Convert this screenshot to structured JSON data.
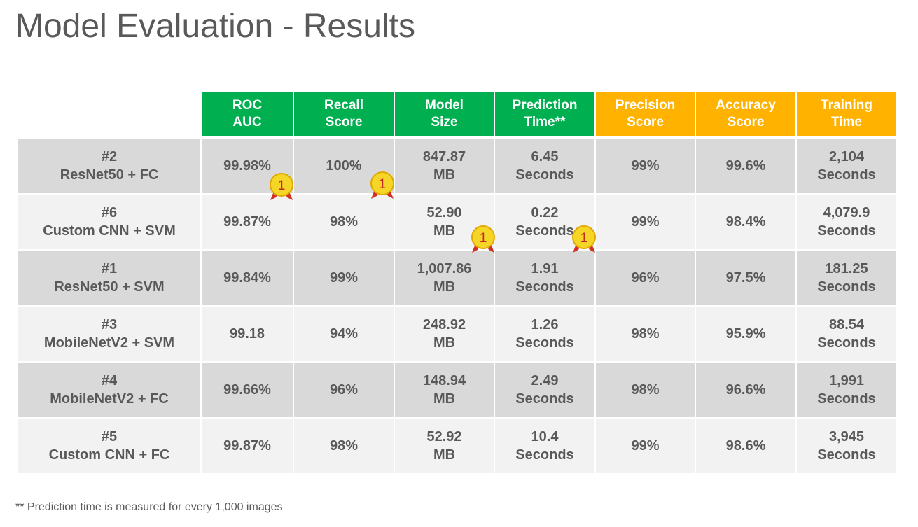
{
  "title": "Model Evaluation - Results",
  "colors": {
    "header_green": "#00b050",
    "header_amber": "#ffb300",
    "row_dark": "#d9d9d9",
    "row_light": "#f2f2f2",
    "text": "#595959",
    "medal_gold": "#f5d626",
    "medal_ribbon": "#d22f27",
    "medal_number": "#c62828"
  },
  "headers": [
    {
      "label": "ROC\nAUC",
      "color": "green"
    },
    {
      "label": "Recall\nScore",
      "color": "green"
    },
    {
      "label": "Model\nSize",
      "color": "green"
    },
    {
      "label": "Prediction\nTime**",
      "color": "green"
    },
    {
      "label": "Precision\nScore",
      "color": "amber"
    },
    {
      "label": "Accuracy\nScore",
      "color": "amber"
    },
    {
      "label": "Training\nTime",
      "color": "amber"
    }
  ],
  "rows": [
    {
      "rank": "#2",
      "name": "ResNet50 + FC",
      "cells": [
        "99.98%",
        "100%",
        "847.87\nMB",
        "6.45\nSeconds",
        "99%",
        "99.6%",
        "2,104\nSeconds"
      ]
    },
    {
      "rank": "#6",
      "name": "Custom CNN + SVM",
      "cells": [
        "99.87%",
        "98%",
        "52.90\nMB",
        "0.22\nSeconds",
        "99%",
        "98.4%",
        "4,079.9\nSeconds"
      ]
    },
    {
      "rank": "#1",
      "name": "ResNet50 + SVM",
      "cells": [
        "99.84%",
        "99%",
        "1,007.86\nMB",
        "1.91\nSeconds",
        "96%",
        "97.5%",
        "181.25\nSeconds"
      ]
    },
    {
      "rank": "#3",
      "name": "MobileNetV2 + SVM",
      "cells": [
        "99.18",
        "94%",
        "248.92\nMB",
        "1.26\nSeconds",
        "98%",
        "95.9%",
        "88.54\nSeconds"
      ]
    },
    {
      "rank": "#4",
      "name": "MobileNetV2 + FC",
      "cells": [
        "99.66%",
        "96%",
        "148.94\nMB",
        "2.49\nSeconds",
        "98%",
        "96.6%",
        "1,991\nSeconds"
      ]
    },
    {
      "rank": "#5",
      "name": "Custom CNN + FC",
      "cells": [
        "99.87%",
        "98%",
        "52.92\nMB",
        "10.4\nSeconds",
        "99%",
        "98.6%",
        "3,945\nSeconds"
      ]
    }
  ],
  "medals": [
    {
      "number": "1",
      "icon": "first-place-medal-icon",
      "row": "ResNet50 + FC",
      "column": "ROC AUC"
    },
    {
      "number": "1",
      "icon": "first-place-medal-icon",
      "row": "ResNet50 + FC",
      "column": "Recall Score"
    },
    {
      "number": "1",
      "icon": "first-place-medal-icon",
      "row": "Custom CNN + SVM",
      "column": "Model Size"
    },
    {
      "number": "1",
      "icon": "first-place-medal-icon",
      "row": "Custom CNN + SVM",
      "column": "Prediction Time**"
    }
  ],
  "footnote": "** Prediction time is measured for every 1,000 images"
}
